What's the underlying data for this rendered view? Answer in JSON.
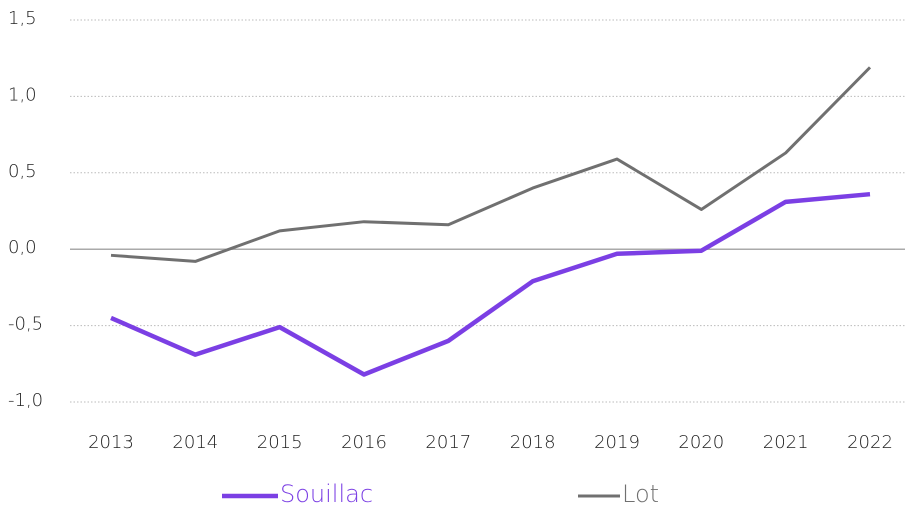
{
  "chart_data": {
    "type": "line",
    "categories": [
      "2013",
      "2014",
      "2015",
      "2016",
      "2017",
      "2018",
      "2019",
      "2020",
      "2021",
      "2022"
    ],
    "series": [
      {
        "name": "Souillac",
        "color": "#7b3fe4",
        "values": [
          -0.45,
          -0.69,
          -0.51,
          -0.82,
          -0.6,
          -0.21,
          -0.03,
          -0.01,
          0.31,
          0.36
        ]
      },
      {
        "name": "Lot",
        "color": "#707070",
        "values": [
          -0.04,
          -0.08,
          0.12,
          0.18,
          0.16,
          0.4,
          0.59,
          0.26,
          0.63,
          1.19
        ]
      }
    ],
    "ylim": [
      -1.0,
      1.5
    ],
    "yticks": [
      {
        "value": -1.0,
        "label": "-1,0"
      },
      {
        "value": -0.5,
        "label": "-0,5"
      },
      {
        "value": 0,
        "label": "0,0"
      },
      {
        "value": 0.5,
        "label": "0,5"
      },
      {
        "value": 1.0,
        "label": "1,0"
      },
      {
        "value": 1.5,
        "label": "1,5"
      }
    ],
    "grid": true,
    "legend": "bottom"
  }
}
